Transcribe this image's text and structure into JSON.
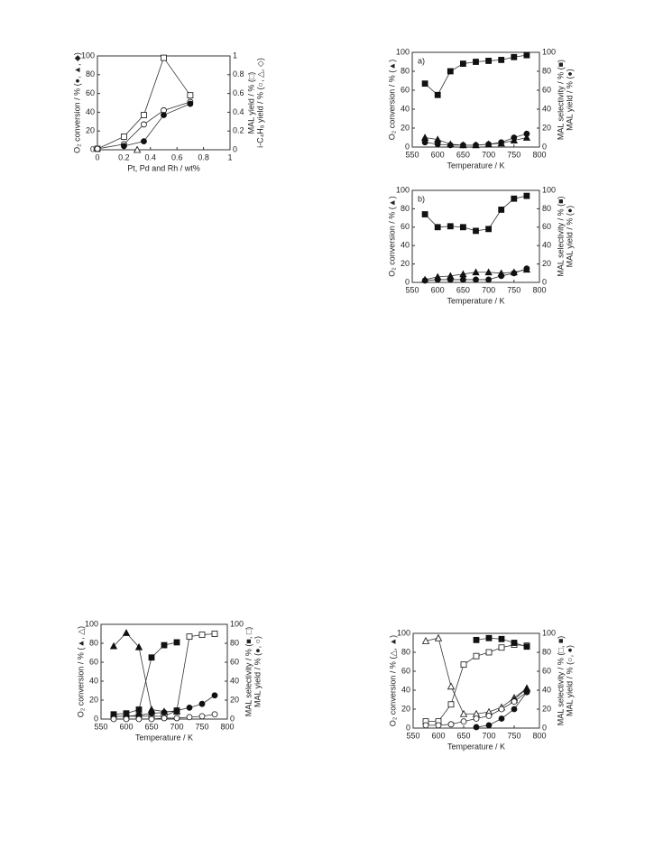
{
  "chart_data": [
    {
      "type": "line",
      "xlabel": "Pt, Pd and Rh / wt%",
      "ylabel": "O₂ conversion / % (●, ▲, ◆)",
      "y2label": [
        "MAL yield / % (□)",
        "i-C₄H₈ yield / % (○, △, ◇)"
      ],
      "xlim": [
        0,
        1
      ],
      "xticks": [
        0,
        0.2,
        0.4,
        0.6,
        0.8,
        1
      ],
      "ylim": [
        0,
        100
      ],
      "yticks": [
        0,
        20,
        40,
        60,
        80,
        100
      ],
      "y2lim": [
        0,
        1
      ],
      "y2ticks": [
        0,
        0.2,
        0.4,
        0.6,
        0.8,
        1
      ],
      "series": [
        {
          "marker": "square",
          "filled": false,
          "axis": "y2",
          "x": [
            0,
            0.2,
            0.35,
            0.5,
            0.7
          ],
          "values": [
            0.01,
            0.14,
            0.37,
            0.98,
            0.58
          ]
        },
        {
          "marker": "circle",
          "filled": false,
          "axis": "y2",
          "x": [
            0,
            0.2,
            0.35,
            0.5,
            0.7
          ],
          "values": [
            0.01,
            0.06,
            0.27,
            0.42,
            0.51
          ]
        },
        {
          "marker": "circle",
          "filled": true,
          "axis": "y",
          "x": [
            0.2,
            0.35,
            0.5,
            0.7
          ],
          "values": [
            4,
            9,
            37,
            49
          ]
        },
        {
          "marker": "triangle",
          "filled": false,
          "axis": "y2",
          "x": [
            0.3
          ],
          "values": [
            0
          ]
        }
      ]
    },
    {
      "type": "line",
      "panel_label": "a)",
      "xlabel": "Temperature / K",
      "ylabel": "O₂ conversion / % (▲)",
      "y2label": [
        "MAL selectivity / % (■)",
        "MAL yield / % (●)"
      ],
      "xlim": [
        550,
        800
      ],
      "xticks": [
        550,
        600,
        650,
        700,
        750,
        800
      ],
      "ylim": [
        0,
        100
      ],
      "yticks": [
        0,
        20,
        40,
        60,
        80,
        100
      ],
      "y2lim": [
        0,
        100
      ],
      "y2ticks": [
        0,
        20,
        40,
        60,
        80,
        100
      ],
      "x": [
        575,
        600,
        625,
        650,
        675,
        700,
        725,
        750,
        775
      ],
      "series": [
        {
          "marker": "square",
          "filled": true,
          "axis": "y2",
          "values": [
            67,
            55,
            80,
            88,
            90,
            91,
            92,
            95,
            97
          ]
        },
        {
          "marker": "triangle",
          "filled": true,
          "axis": "y",
          "values": [
            10,
            8,
            3,
            2,
            2,
            3,
            4,
            7,
            10
          ]
        },
        {
          "marker": "circle",
          "filled": true,
          "axis": "y2",
          "values": [
            5,
            3,
            2,
            2,
            2,
            3,
            5,
            10,
            14
          ]
        }
      ]
    },
    {
      "type": "line",
      "panel_label": "b)",
      "xlabel": "Temperature / K",
      "ylabel": "O₂ conversion / % (▲)",
      "y2label": [
        "MAL selectivity / % (■)",
        "MAL yield / % (●)"
      ],
      "xlim": [
        550,
        800
      ],
      "xticks": [
        550,
        600,
        650,
        700,
        750,
        800
      ],
      "ylim": [
        0,
        100
      ],
      "yticks": [
        0,
        20,
        40,
        60,
        80,
        100
      ],
      "y2lim": [
        0,
        100
      ],
      "y2ticks": [
        0,
        20,
        40,
        60,
        80,
        100
      ],
      "x": [
        575,
        600,
        625,
        650,
        675,
        700,
        725,
        750,
        775
      ],
      "series": [
        {
          "marker": "square",
          "filled": true,
          "axis": "y2",
          "values": [
            74,
            60,
            61,
            60,
            56,
            58,
            79,
            91,
            94
          ]
        },
        {
          "marker": "triangle",
          "filled": true,
          "axis": "y",
          "values": [
            3,
            6,
            7,
            9,
            11,
            11,
            10,
            11,
            14
          ]
        },
        {
          "marker": "circle",
          "filled": true,
          "axis": "y2",
          "values": [
            2,
            3,
            3,
            3,
            3,
            3,
            7,
            10,
            15
          ]
        }
      ]
    },
    {
      "type": "line",
      "xlabel": "Temperature / K",
      "ylabel": "O₂ conversion / % (▲, △)",
      "y2label": [
        "MAL selectivity / % (■, □)",
        "MAL yield / % (●, ○)"
      ],
      "xlim": [
        550,
        800
      ],
      "xticks": [
        550,
        600,
        650,
        700,
        750,
        800
      ],
      "ylim": [
        0,
        100
      ],
      "yticks": [
        0,
        20,
        40,
        60,
        80,
        100
      ],
      "y2lim": [
        0,
        100
      ],
      "y2ticks": [
        0,
        20,
        40,
        60,
        80,
        100
      ],
      "x": [
        575,
        600,
        625,
        650,
        675,
        700,
        725,
        750,
        775
      ],
      "series": [
        {
          "marker": "triangle",
          "filled": true,
          "axis": "y",
          "values": [
            77,
            91,
            76,
            10,
            8,
            8,
            null,
            null,
            null
          ]
        },
        {
          "marker": "square",
          "filled": true,
          "axis": "y2",
          "values": [
            5,
            6,
            10,
            65,
            78,
            81,
            null,
            null,
            null
          ]
        },
        {
          "marker": "square",
          "filled": false,
          "axis": "y2",
          "values": [
            3,
            3,
            3,
            3,
            3,
            9,
            87,
            89,
            90
          ]
        },
        {
          "marker": "circle",
          "filled": true,
          "axis": "y2",
          "values": [
            3,
            3,
            4,
            6,
            7,
            9,
            12,
            16,
            25
          ]
        },
        {
          "marker": "circle",
          "filled": false,
          "axis": "y2",
          "values": [
            0,
            0,
            0,
            0,
            1,
            1,
            2,
            3,
            5
          ]
        }
      ]
    },
    {
      "type": "line",
      "xlabel": "Temperature / K",
      "ylabel": "O₂ conversion / % (△, ▲)",
      "y2label": [
        "MAL selectivity / % (□, ■)",
        "MAL yield / % (○, ●)"
      ],
      "xlim": [
        550,
        800
      ],
      "xticks": [
        550,
        600,
        650,
        700,
        750,
        800
      ],
      "ylim": [
        0,
        100
      ],
      "yticks": [
        0,
        20,
        40,
        60,
        80,
        100
      ],
      "y2lim": [
        0,
        100
      ],
      "y2ticks": [
        0,
        20,
        40,
        60,
        80,
        100
      ],
      "x": [
        575,
        600,
        625,
        650,
        675,
        700,
        725,
        750,
        775
      ],
      "series": [
        {
          "marker": "triangle",
          "filled": false,
          "axis": "y",
          "values": [
            92,
            95,
            44,
            15,
            15,
            17,
            22,
            32,
            42
          ]
        },
        {
          "marker": "triangle",
          "filled": true,
          "axis": "y",
          "values": [
            null,
            null,
            null,
            null,
            null,
            null,
            null,
            30,
            42
          ]
        },
        {
          "marker": "square",
          "filled": false,
          "axis": "y2",
          "values": [
            7,
            7,
            25,
            67,
            76,
            80,
            85,
            88,
            87
          ]
        },
        {
          "marker": "square",
          "filled": true,
          "axis": "y2",
          "values": [
            null,
            null,
            null,
            null,
            93,
            95,
            94,
            90,
            86
          ]
        },
        {
          "marker": "circle",
          "filled": false,
          "axis": "y2",
          "values": [
            3,
            3,
            4,
            7,
            10,
            13,
            20,
            28,
            38
          ]
        },
        {
          "marker": "circle",
          "filled": true,
          "axis": "y2",
          "values": [
            null,
            null,
            null,
            null,
            1,
            3,
            10,
            20,
            38
          ]
        }
      ]
    }
  ]
}
